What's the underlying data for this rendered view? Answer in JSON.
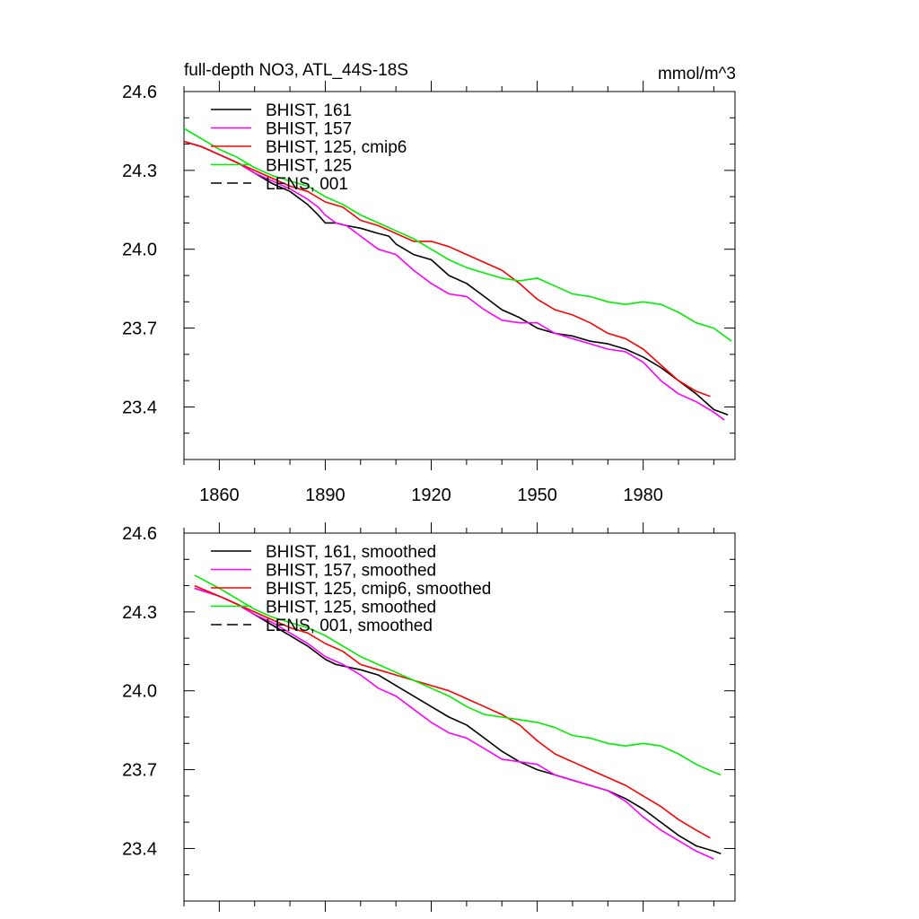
{
  "chart_data": [
    {
      "type": "line",
      "title": "full-depth NO3, ATL_44S-18S",
      "units": "mmol/m^3",
      "xlim": [
        1850,
        2006
      ],
      "ylim": [
        23.2,
        24.6
      ],
      "xticks": [
        1860,
        1890,
        1920,
        1950,
        1980
      ],
      "xtick_labels": [
        "1860",
        "1890",
        "1920",
        "1950",
        "1980"
      ],
      "yticks": [
        23.4,
        23.7,
        24.0,
        24.3,
        24.6
      ],
      "ytick_labels": [
        "23.4",
        "23.7",
        "24.0",
        "24.3",
        "24.6"
      ],
      "legend_position": "top-left",
      "series": [
        {
          "name": "BHIST, 161",
          "color": "#000000",
          "dash": "solid",
          "x": [
            1850,
            1855,
            1860,
            1865,
            1870,
            1875,
            1880,
            1885,
            1888,
            1890,
            1893,
            1896,
            1900,
            1905,
            1908,
            1910,
            1915,
            1920,
            1925,
            1930,
            1935,
            1940,
            1945,
            1950,
            1955,
            1960,
            1965,
            1970,
            1975,
            1980,
            1985,
            1990,
            1995,
            2000,
            2004
          ],
          "y": [
            24.41,
            24.39,
            24.36,
            24.33,
            24.29,
            24.25,
            24.22,
            24.17,
            24.13,
            24.1,
            24.1,
            24.09,
            24.08,
            24.06,
            24.05,
            24.02,
            23.98,
            23.96,
            23.9,
            23.87,
            23.82,
            23.77,
            23.74,
            23.7,
            23.68,
            23.67,
            23.65,
            23.64,
            23.62,
            23.59,
            23.55,
            23.5,
            23.45,
            23.39,
            23.37
          ]
        },
        {
          "name": "BHIST, 157",
          "color": "#ff00ff",
          "dash": "solid",
          "x": [
            1850,
            1855,
            1860,
            1865,
            1870,
            1875,
            1880,
            1885,
            1888,
            1890,
            1893,
            1896,
            1900,
            1905,
            1910,
            1915,
            1920,
            1925,
            1930,
            1935,
            1940,
            1945,
            1950,
            1955,
            1960,
            1965,
            1970,
            1975,
            1980,
            1985,
            1990,
            1995,
            2000,
            2003
          ],
          "y": [
            24.41,
            24.39,
            24.36,
            24.33,
            24.29,
            24.26,
            24.23,
            24.19,
            24.16,
            24.13,
            24.1,
            24.09,
            24.05,
            24.0,
            23.98,
            23.92,
            23.87,
            23.83,
            23.82,
            23.77,
            23.73,
            23.72,
            23.72,
            23.68,
            23.66,
            23.64,
            23.62,
            23.61,
            23.57,
            23.5,
            23.45,
            23.42,
            23.38,
            23.35
          ]
        },
        {
          "name": "BHIST, 125, cmip6",
          "color": "#ff0000",
          "dash": "solid",
          "x": [
            1850,
            1855,
            1860,
            1865,
            1870,
            1875,
            1880,
            1885,
            1890,
            1895,
            1900,
            1905,
            1910,
            1915,
            1920,
            1925,
            1930,
            1935,
            1940,
            1945,
            1950,
            1955,
            1960,
            1965,
            1970,
            1975,
            1980,
            1985,
            1990,
            1995,
            1999
          ],
          "y": [
            24.41,
            24.39,
            24.36,
            24.33,
            24.3,
            24.27,
            24.24,
            24.22,
            24.18,
            24.16,
            24.11,
            24.09,
            24.06,
            24.03,
            24.03,
            24.01,
            23.98,
            23.95,
            23.92,
            23.87,
            23.81,
            23.77,
            23.75,
            23.72,
            23.68,
            23.66,
            23.62,
            23.56,
            23.5,
            23.46,
            23.44
          ]
        },
        {
          "name": "BHIST, 125",
          "color": "#00ee00",
          "dash": "solid",
          "x": [
            1850,
            1855,
            1860,
            1865,
            1870,
            1875,
            1880,
            1885,
            1890,
            1895,
            1900,
            1905,
            1910,
            1915,
            1920,
            1925,
            1930,
            1935,
            1940,
            1945,
            1950,
            1955,
            1960,
            1965,
            1970,
            1975,
            1980,
            1985,
            1990,
            1995,
            2000,
            2005
          ],
          "y": [
            24.46,
            24.42,
            24.38,
            24.35,
            24.31,
            24.28,
            24.26,
            24.24,
            24.2,
            24.17,
            24.13,
            24.1,
            24.07,
            24.04,
            24.0,
            23.96,
            23.93,
            23.91,
            23.89,
            23.88,
            23.89,
            23.86,
            23.83,
            23.82,
            23.8,
            23.79,
            23.8,
            23.79,
            23.76,
            23.72,
            23.7,
            23.65
          ]
        },
        {
          "name": "LENS, 001",
          "color": "#000000",
          "dash": "dashed",
          "x": [],
          "y": []
        }
      ]
    },
    {
      "type": "line",
      "title": "",
      "xlim": [
        1850,
        2006
      ],
      "ylim": [
        23.2,
        24.6
      ],
      "xticks": [
        1860,
        1890,
        1920,
        1950,
        1980
      ],
      "yticks": [
        23.4,
        23.7,
        24.0,
        24.3,
        24.6
      ],
      "ytick_labels": [
        "23.4",
        "23.7",
        "24.0",
        "24.3",
        "24.6"
      ],
      "legend_position": "top-left",
      "series": [
        {
          "name": "BHIST, 161, smoothed",
          "color": "#000000",
          "dash": "solid",
          "x": [
            1853,
            1860,
            1865,
            1870,
            1875,
            1880,
            1885,
            1890,
            1893,
            1900,
            1905,
            1910,
            1915,
            1920,
            1925,
            1930,
            1935,
            1940,
            1945,
            1950,
            1955,
            1960,
            1965,
            1970,
            1975,
            1980,
            1985,
            1990,
            1995,
            2000,
            2002
          ],
          "y": [
            24.39,
            24.36,
            24.33,
            24.29,
            24.25,
            24.21,
            24.17,
            24.12,
            24.1,
            24.08,
            24.06,
            24.02,
            23.98,
            23.94,
            23.9,
            23.87,
            23.82,
            23.77,
            23.73,
            23.7,
            23.68,
            23.66,
            23.64,
            23.62,
            23.59,
            23.55,
            23.5,
            23.45,
            23.41,
            23.39,
            23.38
          ]
        },
        {
          "name": "BHIST, 157, smoothed",
          "color": "#ff00ff",
          "dash": "solid",
          "x": [
            1853,
            1860,
            1865,
            1870,
            1875,
            1880,
            1885,
            1890,
            1895,
            1900,
            1905,
            1910,
            1915,
            1920,
            1925,
            1930,
            1935,
            1940,
            1945,
            1950,
            1955,
            1960,
            1965,
            1970,
            1975,
            1980,
            1985,
            1990,
            1995,
            2000
          ],
          "y": [
            24.39,
            24.36,
            24.33,
            24.29,
            24.26,
            24.22,
            24.18,
            24.13,
            24.1,
            24.06,
            24.01,
            23.98,
            23.93,
            23.88,
            23.84,
            23.82,
            23.78,
            23.74,
            23.73,
            23.72,
            23.68,
            23.66,
            23.64,
            23.62,
            23.58,
            23.52,
            23.47,
            23.43,
            23.39,
            23.36
          ]
        },
        {
          "name": "BHIST, 125, cmip6, smoothed",
          "color": "#ff0000",
          "dash": "solid",
          "x": [
            1853,
            1860,
            1865,
            1870,
            1875,
            1880,
            1885,
            1890,
            1895,
            1900,
            1905,
            1910,
            1915,
            1920,
            1925,
            1930,
            1935,
            1940,
            1945,
            1950,
            1955,
            1960,
            1965,
            1970,
            1975,
            1980,
            1985,
            1990,
            1995,
            1999
          ],
          "y": [
            24.4,
            24.36,
            24.33,
            24.3,
            24.27,
            24.24,
            24.22,
            24.18,
            24.15,
            24.1,
            24.08,
            24.06,
            24.04,
            24.02,
            24.0,
            23.97,
            23.94,
            23.91,
            23.87,
            23.81,
            23.76,
            23.73,
            23.7,
            23.67,
            23.64,
            23.6,
            23.56,
            23.51,
            23.47,
            23.44
          ]
        },
        {
          "name": "BHIST, 125, smoothed",
          "color": "#00ee00",
          "dash": "solid",
          "x": [
            1853,
            1860,
            1865,
            1870,
            1875,
            1880,
            1885,
            1890,
            1895,
            1900,
            1905,
            1910,
            1915,
            1920,
            1925,
            1930,
            1935,
            1940,
            1945,
            1950,
            1955,
            1960,
            1965,
            1970,
            1975,
            1980,
            1985,
            1990,
            1995,
            2000,
            2002
          ],
          "y": [
            24.44,
            24.39,
            24.35,
            24.31,
            24.28,
            24.26,
            24.24,
            24.21,
            24.17,
            24.13,
            24.1,
            24.07,
            24.04,
            24.01,
            23.98,
            23.94,
            23.91,
            23.9,
            23.89,
            23.88,
            23.86,
            23.83,
            23.82,
            23.8,
            23.79,
            23.8,
            23.79,
            23.76,
            23.72,
            23.69,
            23.68
          ]
        },
        {
          "name": "LENS, 001, smoothed",
          "color": "#000000",
          "dash": "dashed",
          "x": [],
          "y": []
        }
      ]
    }
  ]
}
